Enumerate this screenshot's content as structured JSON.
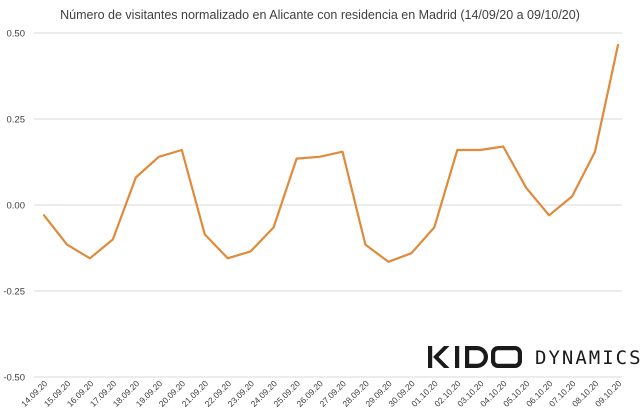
{
  "chart_data": {
    "type": "line",
    "title": "Número de visitantes normalizado en Alicante con residencia en Madrid (14/09/20 a 09/10/20)",
    "xlabel": "",
    "ylabel": "",
    "ylim": [
      -0.5,
      0.5
    ],
    "yticks": [
      "0.50",
      "0.25",
      "0.00",
      "-0.25",
      "-0.50"
    ],
    "ytick_values": [
      0.5,
      0.25,
      0.0,
      -0.25,
      -0.5
    ],
    "grid": true,
    "x": [
      "14.09.20",
      "15.09.20",
      "16.09.20",
      "17.09.20",
      "18.09.20",
      "19.09.20",
      "20.09.20",
      "21.09.20",
      "22.09.20",
      "23.09.20",
      "24.09.20",
      "25.09.20",
      "26.09.20",
      "27.09.20",
      "28.09.20",
      "29.09.20",
      "30.09.20",
      "01.10.20",
      "02.10.20",
      "03.10.20",
      "04.10.20",
      "05.10.20",
      "06.10.20",
      "07.10.20",
      "08.10.20",
      "09.10.20"
    ],
    "series": [
      {
        "values": [
          -0.03,
          -0.115,
          -0.155,
          -0.1,
          0.08,
          0.14,
          0.16,
          -0.085,
          -0.155,
          -0.135,
          -0.065,
          0.135,
          0.14,
          0.155,
          -0.115,
          -0.165,
          -0.14,
          -0.065,
          0.16,
          0.16,
          0.17,
          0.05,
          -0.03,
          0.025,
          0.155,
          0.465
        ],
        "color": "#e08a3a"
      }
    ]
  },
  "logo": {
    "brand": "KIDO DYNAMICS",
    "word1": "KIDO",
    "word2": "DYNAMICS",
    "color": "#1a1a1a"
  }
}
